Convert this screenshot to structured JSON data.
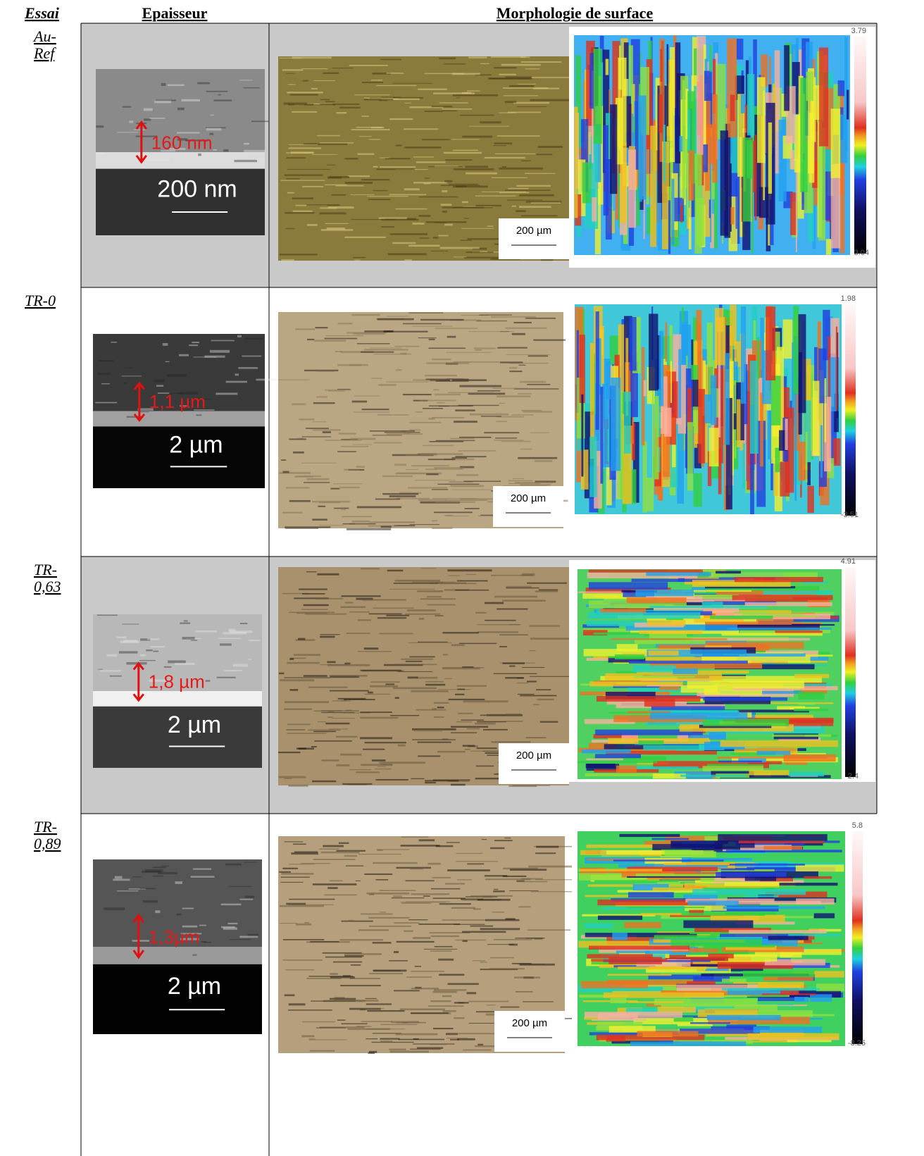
{
  "header": {
    "essai": "Essai",
    "epaisseur": "Epaisseur",
    "morphologie": "Morphologie de surface"
  },
  "rows": [
    {
      "label": "Au-Ref",
      "sem": {
        "thickness": "160 nm",
        "scale": "200 nm"
      },
      "optical": {
        "scale": "200 µm"
      },
      "profile": {
        "max": "3.79",
        "min": "3.04"
      }
    },
    {
      "label": "TR-0",
      "sem": {
        "thickness": "1,1 µm",
        "scale": "2 µm"
      },
      "optical": {
        "scale": "200 µm"
      },
      "profile": {
        "max": "1.98",
        "min": "-3.51"
      }
    },
    {
      "label": "TR-0,63",
      "sem": {
        "thickness": "1,8 µm",
        "scale": "2 µm"
      },
      "optical": {
        "scale": "200 µm"
      },
      "profile": {
        "max": "4.91",
        "min": "2.4"
      }
    },
    {
      "label": "TR-0,89",
      "sem": {
        "thickness": "1,3µm",
        "scale": "2 µm"
      },
      "optical": {
        "scale": "200 µm"
      },
      "profile": {
        "max": "5.8",
        "min": "-8.25"
      }
    }
  ]
}
